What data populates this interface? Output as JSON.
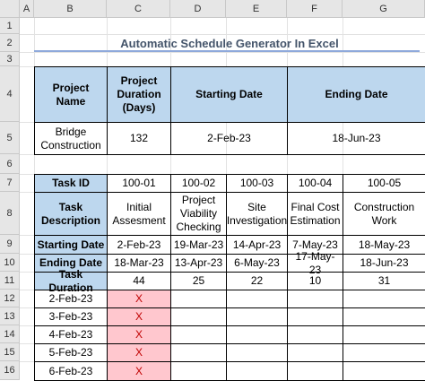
{
  "columns": [
    "A",
    "B",
    "C",
    "D",
    "E",
    "F",
    "G"
  ],
  "rows": [
    "1",
    "2",
    "3",
    "4",
    "5",
    "6",
    "7",
    "8",
    "9",
    "10",
    "11",
    "12",
    "13",
    "14",
    "15",
    "16"
  ],
  "title": "Automatic Schedule Generator In Excel",
  "project_table": {
    "headers": [
      "Project Name",
      "Project Duration (Days)",
      "Starting Date",
      "Ending Date"
    ],
    "values": [
      "Bridge Construction",
      "132",
      "2-Feb-23",
      "18-Jun-23"
    ]
  },
  "task_table": {
    "row_labels": [
      "Task ID",
      "Task Description",
      "Starting Date",
      "Ending Date",
      "Task Duration"
    ],
    "task_ids": [
      "100-01",
      "100-02",
      "100-03",
      "100-04",
      "100-05"
    ],
    "descriptions": [
      "Initial Assesment",
      "Project Viability Checking",
      "Site Investigation",
      "Final Cost Estimation",
      "Construction Work"
    ],
    "starts": [
      "2-Feb-23",
      "19-Mar-23",
      "14-Apr-23",
      "7-May-23",
      "18-May-23"
    ],
    "ends": [
      "18-Mar-23",
      "13-Apr-23",
      "6-May-23",
      "17-May-23",
      "18-Jun-23"
    ],
    "durations": [
      "44",
      "25",
      "22",
      "10",
      "31"
    ]
  },
  "schedule": {
    "dates": [
      "2-Feb-23",
      "3-Feb-23",
      "4-Feb-23",
      "5-Feb-23",
      "6-Feb-23"
    ],
    "marks": [
      "X",
      "X",
      "X",
      "X",
      "X"
    ]
  },
  "colors": {
    "header_fill": "#bdd7ee",
    "mark_fill": "#ffc7ce",
    "mark_text": "#c00000",
    "title_text": "#44546a"
  }
}
